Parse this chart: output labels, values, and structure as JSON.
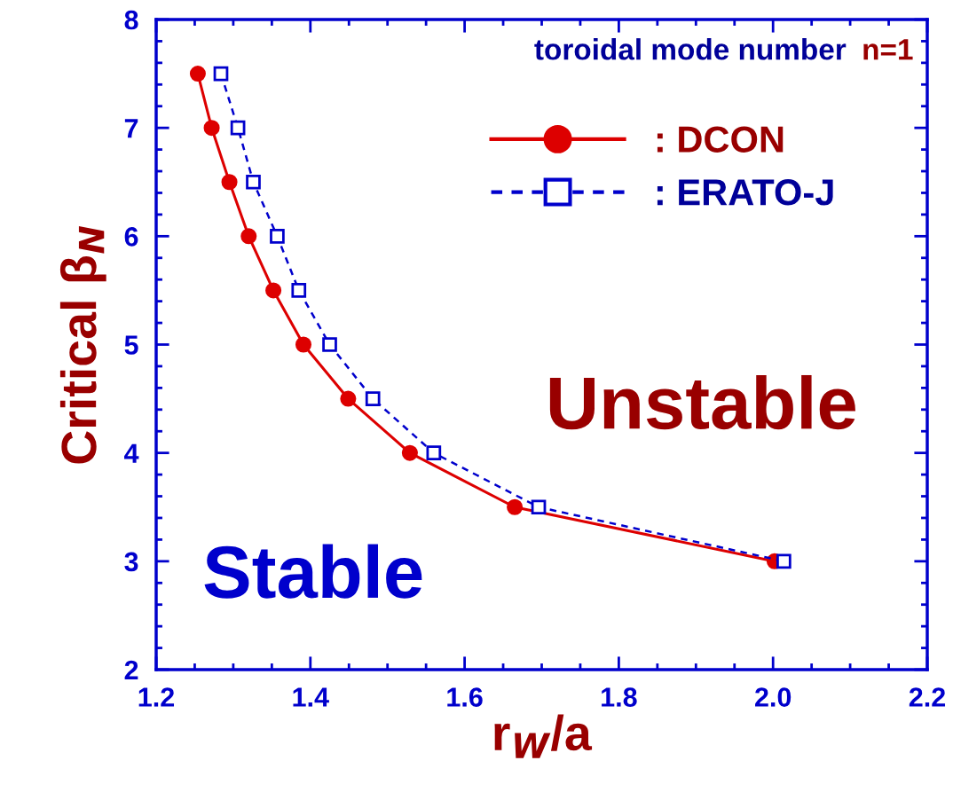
{
  "chart_data": {
    "type": "line",
    "xlabel": "r$_{W}$/a",
    "ylabel": "Critical β$_{N}$",
    "annotations": [
      "toroidal mode number",
      "n=1",
      "Unstable",
      "Stable"
    ],
    "series": [
      {
        "name": ": DCON",
        "color": "#dd0000",
        "marker": "circle",
        "line_style": "solid",
        "x": [
          1.254,
          1.272,
          1.295,
          1.32,
          1.352,
          1.391,
          1.449,
          1.529,
          1.665,
          2.002
        ],
        "values": [
          7.5,
          7.0,
          6.5,
          6.0,
          5.5,
          5.0,
          4.5,
          4.0,
          3.5,
          3.0
        ]
      },
      {
        "name": ": ERATO-J",
        "color": "#0000cc",
        "marker": "square",
        "line_style": "dashed",
        "x": [
          1.284,
          1.306,
          1.326,
          1.357,
          1.385,
          1.425,
          1.481,
          1.56,
          1.696,
          2.014
        ],
        "values": [
          7.5,
          7.0,
          6.5,
          6.0,
          5.5,
          5.0,
          4.5,
          4.0,
          3.5,
          3.0
        ]
      }
    ],
    "xlim": [
      1.2,
      2.2
    ],
    "xticks": [
      {
        "value": 1.2,
        "label": "1.2"
      },
      {
        "value": 1.4,
        "label": "1.4"
      },
      {
        "value": 1.6,
        "label": "1.6"
      },
      {
        "value": 1.8,
        "label": "1.8"
      },
      {
        "value": 2.0,
        "label": "2.0"
      },
      {
        "value": 2.2,
        "label": "2.2"
      }
    ],
    "ylim": [
      2,
      8
    ],
    "yticks": [
      2,
      3,
      4,
      5,
      6,
      7,
      8
    ],
    "grid": false,
    "legend": "top right"
  }
}
